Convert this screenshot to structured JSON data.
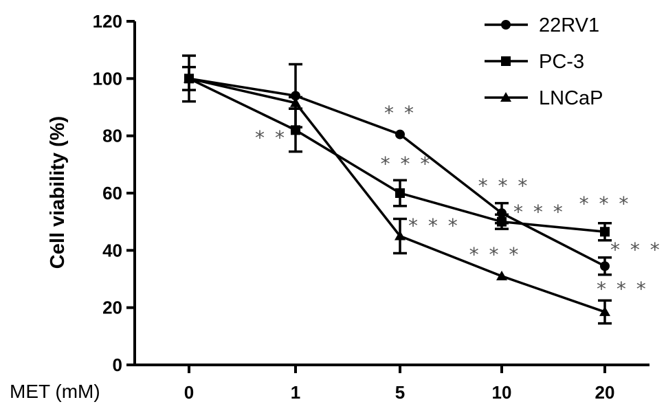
{
  "chart_data": {
    "type": "line",
    "ylabel": "Cell viability (%)",
    "xlabel": "MET (mM)",
    "categories": [
      "0",
      "1",
      "5",
      "10",
      "20"
    ],
    "ylim": [
      0,
      120
    ],
    "yticks": [
      "0",
      "20",
      "40",
      "60",
      "80",
      "100",
      "120"
    ],
    "legend_position": "top-right",
    "series": [
      {
        "name": "22RV1",
        "marker": "circle",
        "values": [
          100,
          94,
          80.5,
          53,
          34.5
        ],
        "errors": [
          0,
          11,
          0,
          3.5,
          3
        ],
        "significance": [
          "",
          "",
          "**",
          "***",
          "***"
        ]
      },
      {
        "name": "PC-3",
        "marker": "square",
        "values": [
          100,
          82,
          60,
          50,
          46.5
        ],
        "errors": [
          4,
          7.5,
          4.5,
          2.5,
          3
        ],
        "significance": [
          "",
          "**",
          "***",
          "***",
          "***"
        ]
      },
      {
        "name": "LNCaP",
        "marker": "triangle",
        "values": [
          100,
          91.5,
          45,
          31,
          18.5
        ],
        "errors": [
          8,
          2,
          6,
          0,
          4
        ],
        "significance": [
          "",
          "",
          "***",
          "***",
          "***"
        ]
      }
    ]
  }
}
